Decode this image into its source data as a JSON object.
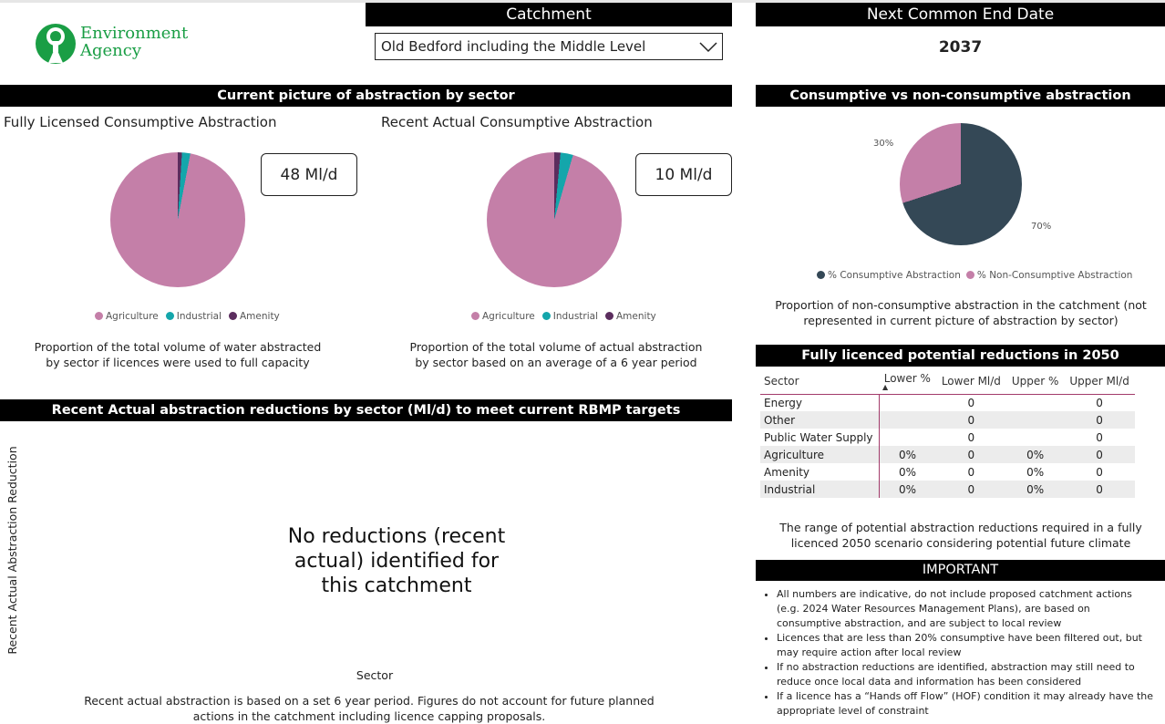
{
  "logo": {
    "line1": "Environment",
    "line2": "Agency"
  },
  "catchment": {
    "title": "Catchment",
    "selected": "Old Bedford including the Middle Level"
  },
  "end_date": {
    "title": "Next Common End Date",
    "value": "2037"
  },
  "sector_section": {
    "title": "Current picture of abstraction by sector",
    "licensed": {
      "title": "Fully Licensed Consumptive Abstraction",
      "kpi": "48 Ml/d",
      "caption": "Proportion of the total volume of water abstracted by sector if licences were used to full capacity",
      "shares": [
        97,
        2,
        1
      ]
    },
    "actual": {
      "title": "Recent Actual Consumptive Abstraction",
      "kpi": "10 Ml/d",
      "caption": "Proportion of the total volume of actual abstraction by sector based on an average of a 6 year period",
      "shares": [
        95.5,
        3,
        1.5
      ]
    },
    "legend": [
      "Agriculture",
      "Industrial",
      "Amenity"
    ],
    "colors": [
      "#c47fa8",
      "#14a6ab",
      "#5b2d5e"
    ]
  },
  "reductions": {
    "title": "Recent Actual abstraction reductions by sector (Ml/d) to meet current RBMP targets",
    "ylabel": "Recent Actual Abstraction Reduction",
    "xlabel": "Sector",
    "message": "No reductions (recent actual) identified for this catchment",
    "caption": "Recent actual abstraction is based on a set 6 year period. Figures do not account for future planned actions in the catchment including licence capping proposals."
  },
  "consumptive": {
    "title": "Consumptive vs non-consumptive abstraction",
    "label_70": "70%",
    "label_30": "30%",
    "legend": [
      "% Consumptive Abstraction",
      "% Non-Consumptive Abstraction"
    ],
    "values": [
      70,
      30
    ],
    "colors": [
      "#344856",
      "#c47fa8"
    ],
    "caption": "Proportion of non-consumptive abstraction in the catchment (not represented in current picture of abstraction by sector)"
  },
  "reductions_2050": {
    "title": "Fully licenced potential reductions in 2050",
    "headers": [
      "Sector",
      "Lower %",
      "Lower Ml/d",
      "Upper %",
      "Upper Ml/d"
    ],
    "rows": [
      [
        "Energy",
        "",
        "0",
        "",
        "0"
      ],
      [
        "Other",
        "",
        "0",
        "",
        "0"
      ],
      [
        "Public Water Supply",
        "",
        "0",
        "",
        "0"
      ],
      [
        "Agriculture",
        "0%",
        "0",
        "0%",
        "0"
      ],
      [
        "Amenity",
        "0%",
        "0",
        "0%",
        "0"
      ],
      [
        "Industrial",
        "0%",
        "0",
        "0%",
        "0"
      ]
    ],
    "caption": "The range of potential abstraction reductions required in a fully licenced 2050 scenario considering potential future climate"
  },
  "important": {
    "title": "IMPORTANT",
    "items": [
      "All numbers are indicative, do not include proposed catchment actions (e.g. 2024 Water Resources Management Plans), are based on consumptive abstraction, and are subject to local review",
      "Licences that are less than 20% consumptive have been filtered out, but may require action after local review",
      "If no abstraction reductions are identified, abstraction may still need to reduce once local data and information has been considered",
      "If a licence has a “Hands off Flow” (HOF) condition it may already have the appropriate level of constraint"
    ]
  }
}
